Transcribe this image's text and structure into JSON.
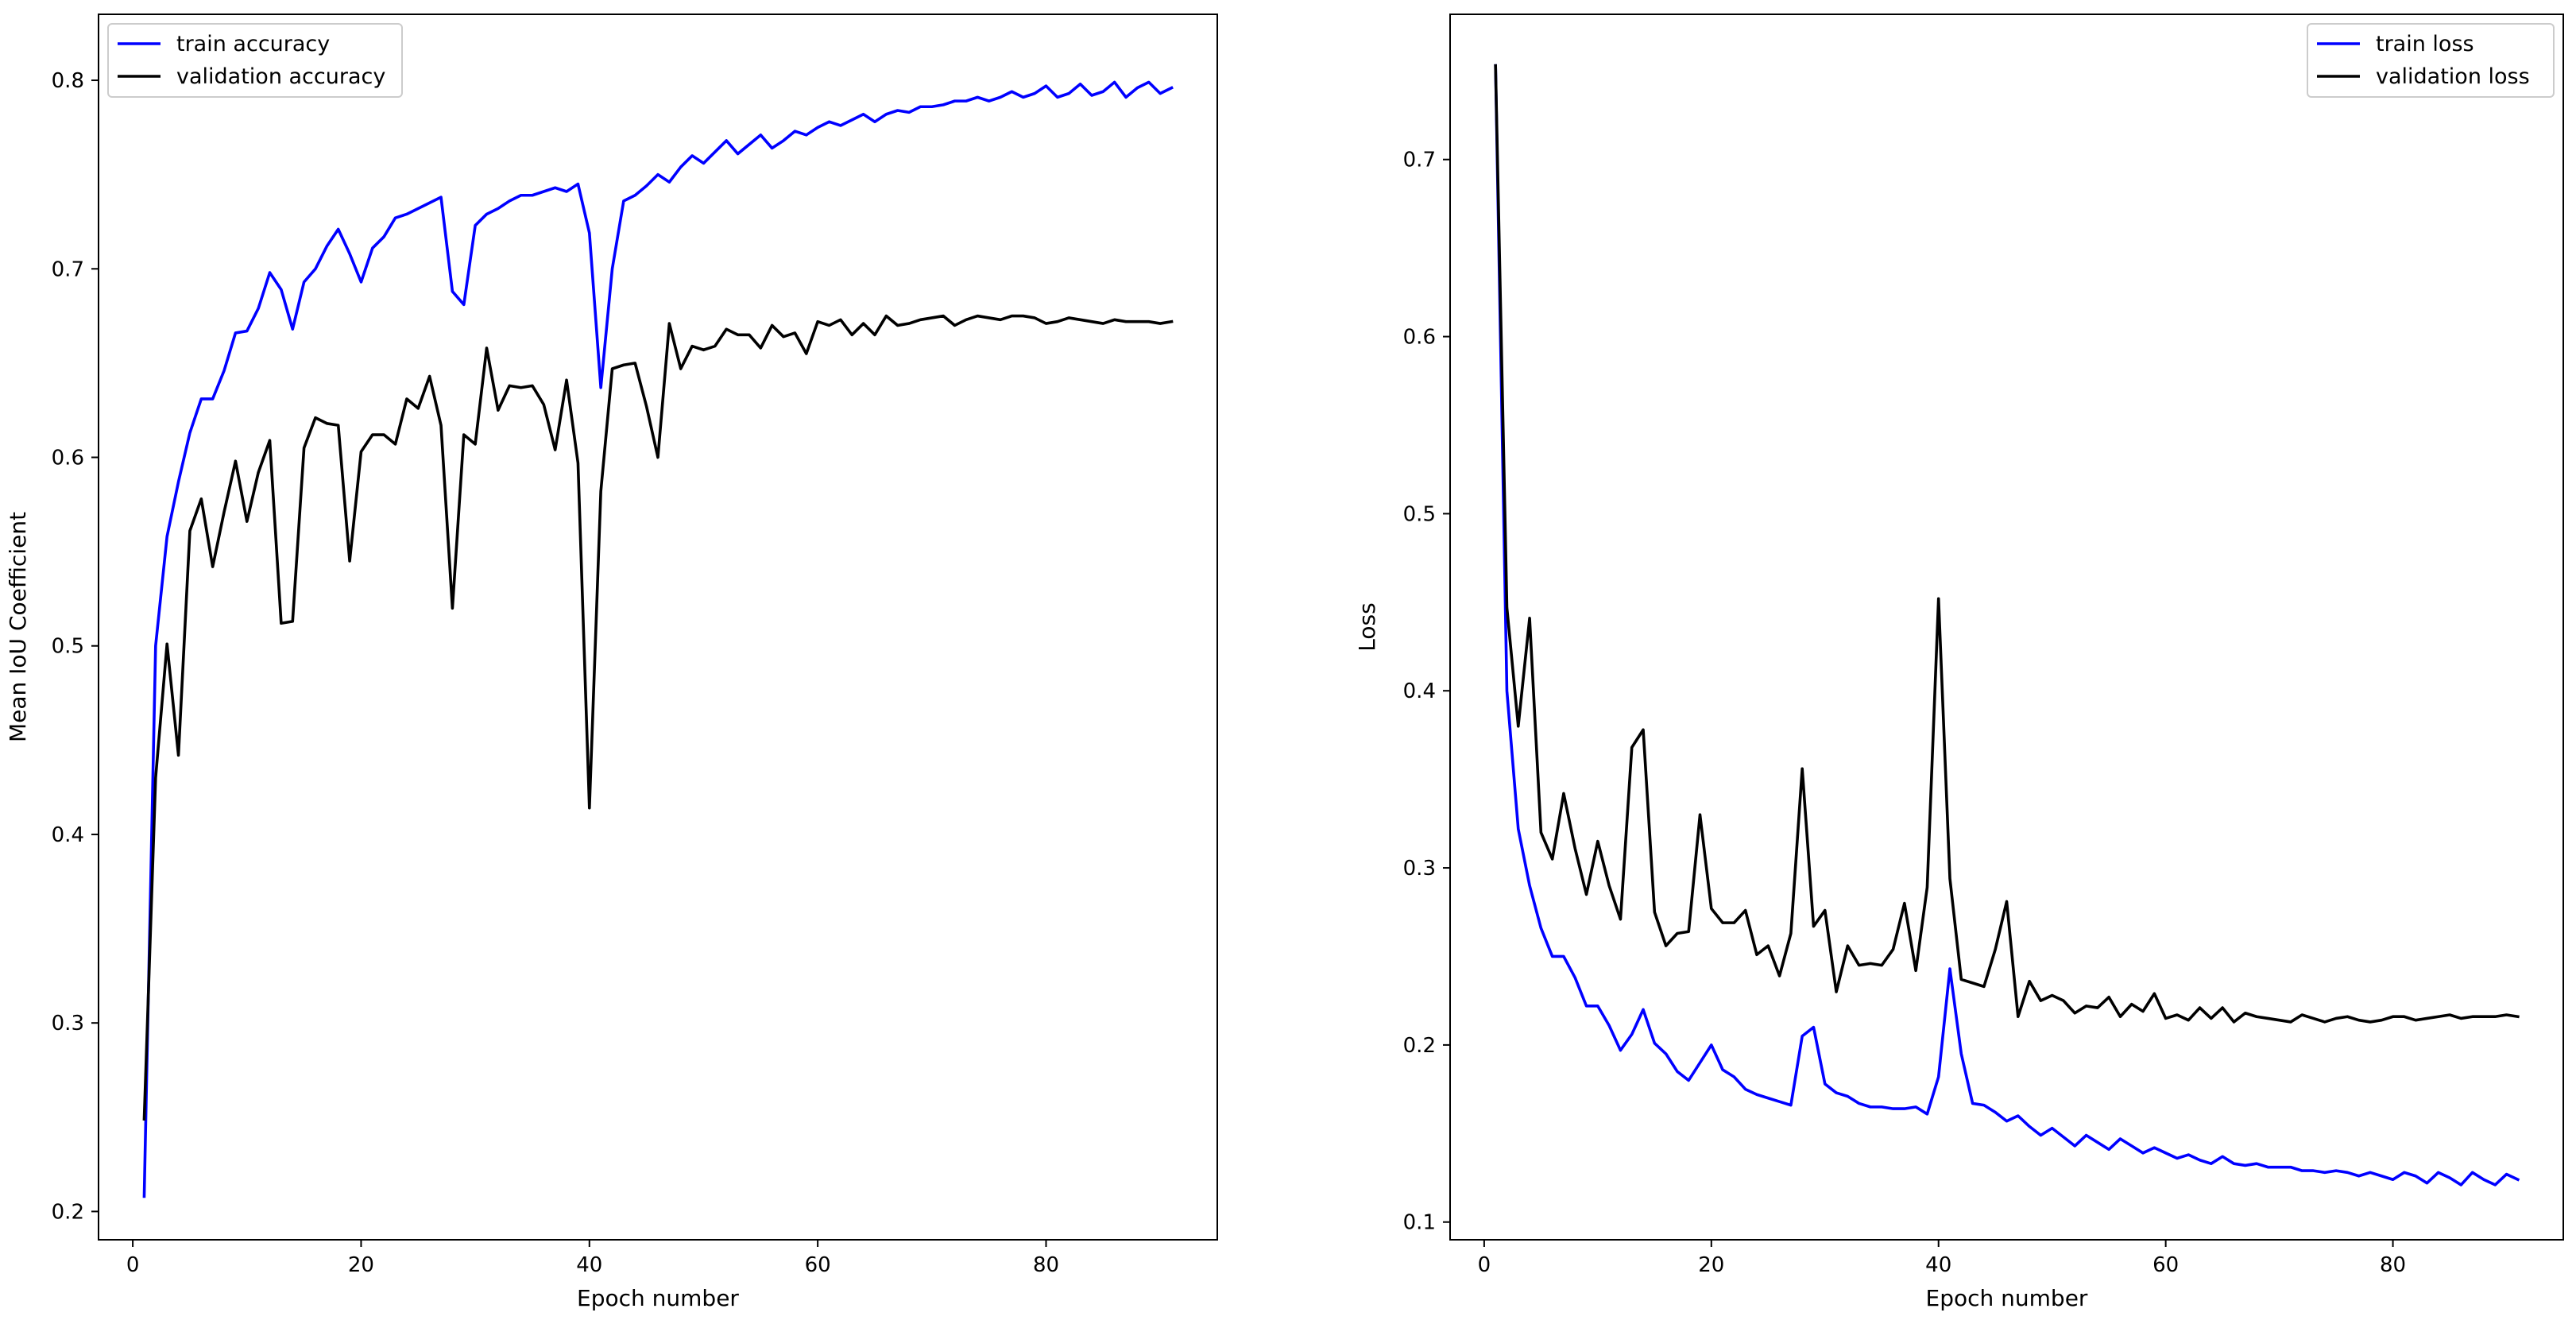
{
  "chart_data": [
    {
      "type": "line",
      "title": "",
      "xlabel": "Epoch number",
      "ylabel": "Mean IoU Coefficient",
      "xlim": [
        -3,
        95
      ],
      "ylim": [
        0.185,
        0.835
      ],
      "xticks": [
        "0",
        "20",
        "40",
        "60",
        "80"
      ],
      "yticks": [
        "0.2",
        "0.3",
        "0.4",
        "0.5",
        "0.6",
        "0.7",
        "0.8"
      ],
      "legend_position": "upper-left",
      "grid": false,
      "series": [
        {
          "name": "train accuracy",
          "color": "#0000ff",
          "x": [
            1,
            2,
            3,
            4,
            5,
            6,
            7,
            8,
            9,
            10,
            11,
            12,
            13,
            14,
            15,
            16,
            17,
            18,
            19,
            20,
            21,
            22,
            23,
            24,
            25,
            26,
            27,
            28,
            29,
            30,
            31,
            32,
            33,
            34,
            35,
            36,
            37,
            38,
            39,
            40,
            41,
            42,
            43,
            44,
            45,
            46,
            47,
            48,
            49,
            50,
            51,
            52,
            53,
            54,
            55,
            56,
            57,
            58,
            59,
            60,
            61,
            62,
            63,
            64,
            65,
            66,
            67,
            68,
            69,
            70,
            71,
            72,
            73,
            74,
            75,
            76,
            77,
            78,
            79,
            80,
            81,
            82,
            83,
            84,
            85,
            86,
            87,
            88,
            89,
            90,
            91
          ],
          "y": [
            0.208,
            0.5,
            0.558,
            0.587,
            0.613,
            0.631,
            0.631,
            0.646,
            0.666,
            0.667,
            0.679,
            0.698,
            0.689,
            0.668,
            0.693,
            0.7,
            0.712,
            0.721,
            0.708,
            0.693,
            0.711,
            0.717,
            0.727,
            0.729,
            0.732,
            0.735,
            0.738,
            0.688,
            0.681,
            0.723,
            0.729,
            0.732,
            0.736,
            0.739,
            0.739,
            0.741,
            0.743,
            0.741,
            0.745,
            0.719,
            0.637,
            0.7,
            0.736,
            0.739,
            0.744,
            0.75,
            0.746,
            0.754,
            0.76,
            0.756,
            0.762,
            0.768,
            0.761,
            0.766,
            0.771,
            0.764,
            0.768,
            0.773,
            0.771,
            0.775,
            0.778,
            0.776,
            0.779,
            0.782,
            0.778,
            0.782,
            0.784,
            0.783,
            0.786,
            0.786,
            0.787,
            0.789,
            0.789,
            0.791,
            0.789,
            0.791,
            0.794,
            0.791,
            0.793,
            0.797,
            0.791,
            0.793,
            0.798,
            0.792,
            0.794,
            0.799,
            0.791,
            0.796,
            0.799,
            0.793,
            0.796
          ]
        },
        {
          "name": "validation accuracy",
          "color": "#000000",
          "x": [
            1,
            2,
            3,
            4,
            5,
            6,
            7,
            8,
            9,
            10,
            11,
            12,
            13,
            14,
            15,
            16,
            17,
            18,
            19,
            20,
            21,
            22,
            23,
            24,
            25,
            26,
            27,
            28,
            29,
            30,
            31,
            32,
            33,
            34,
            35,
            36,
            37,
            38,
            39,
            40,
            41,
            42,
            43,
            44,
            45,
            46,
            47,
            48,
            49,
            50,
            51,
            52,
            53,
            54,
            55,
            56,
            57,
            58,
            59,
            60,
            61,
            62,
            63,
            64,
            65,
            66,
            67,
            68,
            69,
            70,
            71,
            72,
            73,
            74,
            75,
            76,
            77,
            78,
            79,
            80,
            81,
            82,
            83,
            84,
            85,
            86,
            87,
            88,
            89,
            90,
            91
          ],
          "y": [
            0.249,
            0.43,
            0.501,
            0.442,
            0.561,
            0.578,
            0.542,
            0.571,
            0.598,
            0.566,
            0.592,
            0.609,
            0.512,
            0.513,
            0.605,
            0.621,
            0.618,
            0.617,
            0.545,
            0.603,
            0.612,
            0.612,
            0.607,
            0.631,
            0.626,
            0.643,
            0.617,
            0.52,
            0.612,
            0.607,
            0.658,
            0.625,
            0.638,
            0.637,
            0.638,
            0.628,
            0.604,
            0.641,
            0.597,
            0.414,
            0.582,
            0.647,
            0.649,
            0.65,
            0.627,
            0.6,
            0.671,
            0.647,
            0.659,
            0.657,
            0.659,
            0.668,
            0.665,
            0.665,
            0.658,
            0.67,
            0.664,
            0.666,
            0.655,
            0.672,
            0.67,
            0.673,
            0.665,
            0.671,
            0.665,
            0.675,
            0.67,
            0.671,
            0.673,
            0.674,
            0.675,
            0.67,
            0.673,
            0.675,
            0.674,
            0.673,
            0.675,
            0.675,
            0.674,
            0.671,
            0.672,
            0.674,
            0.673,
            0.672,
            0.671,
            0.673,
            0.672,
            0.672,
            0.672,
            0.671,
            0.672
          ]
        }
      ]
    },
    {
      "type": "line",
      "title": "",
      "xlabel": "Epoch number",
      "ylabel": "Loss",
      "xlim": [
        -3,
        95
      ],
      "ylim": [
        0.09,
        0.782
      ],
      "xticks": [
        "0",
        "20",
        "40",
        "60",
        "80"
      ],
      "yticks": [
        "0.1",
        "0.2",
        "0.3",
        "0.4",
        "0.5",
        "0.6",
        "0.7"
      ],
      "legend_position": "upper-right",
      "grid": false,
      "series": [
        {
          "name": "train loss",
          "color": "#0000ff",
          "x": [
            1,
            2,
            3,
            4,
            5,
            6,
            7,
            8,
            9,
            10,
            11,
            12,
            13,
            14,
            15,
            16,
            17,
            18,
            19,
            20,
            21,
            22,
            23,
            24,
            25,
            26,
            27,
            28,
            29,
            30,
            31,
            32,
            33,
            34,
            35,
            36,
            37,
            38,
            39,
            40,
            41,
            42,
            43,
            44,
            45,
            46,
            47,
            48,
            49,
            50,
            51,
            52,
            53,
            54,
            55,
            56,
            57,
            58,
            59,
            60,
            61,
            62,
            63,
            64,
            65,
            66,
            67,
            68,
            69,
            70,
            71,
            72,
            73,
            74,
            75,
            76,
            77,
            78,
            79,
            80,
            81,
            82,
            83,
            84,
            85,
            86,
            87,
            88,
            89,
            90,
            91
          ],
          "y": [
            0.753,
            0.4,
            0.322,
            0.29,
            0.266,
            0.25,
            0.25,
            0.238,
            0.222,
            0.222,
            0.211,
            0.197,
            0.206,
            0.22,
            0.201,
            0.195,
            0.185,
            0.18,
            0.19,
            0.2,
            0.186,
            0.182,
            0.175,
            0.172,
            0.17,
            0.168,
            0.166,
            0.205,
            0.21,
            0.178,
            0.173,
            0.171,
            0.167,
            0.165,
            0.165,
            0.164,
            0.164,
            0.165,
            0.161,
            0.182,
            0.243,
            0.195,
            0.167,
            0.166,
            0.162,
            0.157,
            0.16,
            0.154,
            0.149,
            0.153,
            0.148,
            0.143,
            0.149,
            0.145,
            0.141,
            0.147,
            0.143,
            0.139,
            0.142,
            0.139,
            0.136,
            0.138,
            0.135,
            0.133,
            0.137,
            0.133,
            0.132,
            0.133,
            0.131,
            0.131,
            0.131,
            0.129,
            0.129,
            0.128,
            0.129,
            0.128,
            0.126,
            0.128,
            0.126,
            0.124,
            0.128,
            0.126,
            0.122,
            0.128,
            0.125,
            0.121,
            0.128,
            0.124,
            0.121,
            0.127,
            0.124
          ]
        },
        {
          "name": "validation loss",
          "color": "#000000",
          "x": [
            1,
            2,
            3,
            4,
            5,
            6,
            7,
            8,
            9,
            10,
            11,
            12,
            13,
            14,
            15,
            16,
            17,
            18,
            19,
            20,
            21,
            22,
            23,
            24,
            25,
            26,
            27,
            28,
            29,
            30,
            31,
            32,
            33,
            34,
            35,
            36,
            37,
            38,
            39,
            40,
            41,
            42,
            43,
            44,
            45,
            46,
            47,
            48,
            49,
            50,
            51,
            52,
            53,
            54,
            55,
            56,
            57,
            58,
            59,
            60,
            61,
            62,
            63,
            64,
            65,
            66,
            67,
            68,
            69,
            70,
            71,
            72,
            73,
            74,
            75,
            76,
            77,
            78,
            79,
            80,
            81,
            82,
            83,
            84,
            85,
            86,
            87,
            88,
            89,
            90,
            91
          ],
          "y": [
            0.753,
            0.447,
            0.38,
            0.441,
            0.32,
            0.305,
            0.342,
            0.311,
            0.285,
            0.315,
            0.29,
            0.271,
            0.368,
            0.378,
            0.275,
            0.256,
            0.263,
            0.264,
            0.33,
            0.277,
            0.269,
            0.269,
            0.276,
            0.251,
            0.256,
            0.239,
            0.263,
            0.356,
            0.267,
            0.276,
            0.23,
            0.256,
            0.245,
            0.246,
            0.245,
            0.254,
            0.28,
            0.242,
            0.289,
            0.452,
            0.294,
            0.237,
            0.235,
            0.233,
            0.254,
            0.281,
            0.216,
            0.236,
            0.225,
            0.228,
            0.225,
            0.218,
            0.222,
            0.221,
            0.227,
            0.216,
            0.223,
            0.219,
            0.229,
            0.215,
            0.217,
            0.214,
            0.221,
            0.215,
            0.221,
            0.213,
            0.218,
            0.216,
            0.215,
            0.214,
            0.213,
            0.217,
            0.215,
            0.213,
            0.215,
            0.216,
            0.214,
            0.213,
            0.214,
            0.216,
            0.216,
            0.214,
            0.215,
            0.216,
            0.217,
            0.215,
            0.216,
            0.216,
            0.216,
            0.217,
            0.216
          ]
        }
      ]
    }
  ]
}
